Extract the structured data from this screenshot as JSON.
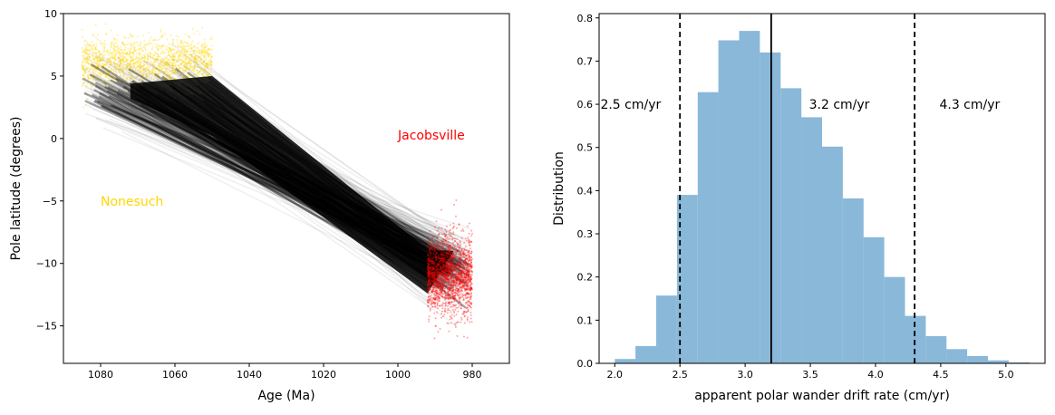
{
  "chart_data": [
    {
      "type": "scatter",
      "xlabel": "Age (Ma)",
      "ylabel": "Pole latitude (degrees)",
      "xlim": [
        1090,
        970
      ],
      "ylim": [
        -18,
        10
      ],
      "x_ticks": [
        "1080",
        "1060",
        "1040",
        "1020",
        "1000",
        "980"
      ],
      "y_ticks": [
        "10",
        "5",
        "0",
        "−5",
        "−10",
        "−15"
      ],
      "series": [
        {
          "name": "Nonesuch",
          "color": "#ffd700",
          "age_range": [
            1085,
            1050
          ],
          "latitude_center": 6.0,
          "latitude_spread": [
            2.0,
            9.7
          ]
        },
        {
          "name": "Jacobsville",
          "color": "#ff0000",
          "age_range": [
            992,
            980
          ],
          "latitude_center": -11.0,
          "latitude_spread": [
            -17.5,
            -4.8
          ]
        }
      ],
      "path_band": {
        "color": "#000000",
        "start_latitude_center": 4.0,
        "end_latitude_center": -10.5
      },
      "annotations": [
        {
          "text": "Nonesuch",
          "x": 1080,
          "y": -5,
          "color": "#ffd700"
        },
        {
          "text": "Jacobsville",
          "x": 1000,
          "y": 0,
          "color": "#ff0000"
        }
      ]
    },
    {
      "type": "bar",
      "xlabel": "apparent polar wander drift rate (cm/yr)",
      "ylabel": "Distribution",
      "xlim": [
        1.88,
        5.3
      ],
      "ylim": [
        0,
        0.81
      ],
      "x_ticks": [
        "2.0",
        "2.5",
        "3.0",
        "3.5",
        "4.0",
        "4.5",
        "5.0"
      ],
      "y_ticks": [
        "0.0",
        "0.1",
        "0.2",
        "0.3",
        "0.4",
        "0.5",
        "0.6",
        "0.7",
        "0.8"
      ],
      "bin_width": 0.159,
      "bin_start": 2.0,
      "values": [
        0.01,
        0.04,
        0.157,
        0.39,
        0.628,
        0.748,
        0.77,
        0.72,
        0.637,
        0.57,
        0.502,
        0.382,
        0.292,
        0.2,
        0.11,
        0.063,
        0.033,
        0.017,
        0.007,
        0.002
      ],
      "bar_color": "#8ab8d9",
      "lines": [
        {
          "x": 2.5,
          "style": "dashed",
          "label": "2.5 cm/yr"
        },
        {
          "x": 3.2,
          "style": "solid",
          "label": "3.2 cm/yr"
        },
        {
          "x": 4.3,
          "style": "dashed",
          "label": "4.3 cm/yr"
        }
      ],
      "label_y": 0.6
    }
  ]
}
